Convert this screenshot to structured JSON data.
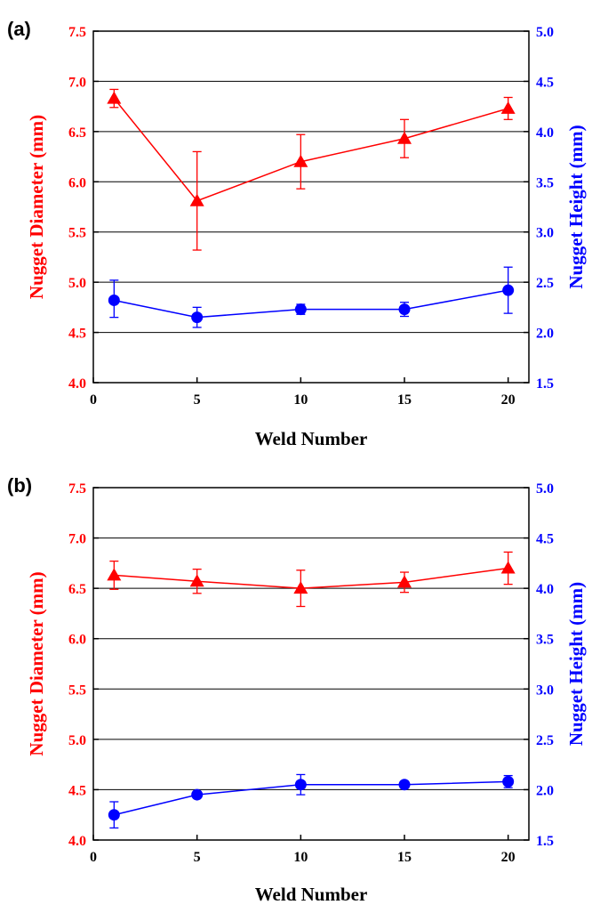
{
  "colors": {
    "left_axis": "#ff0000",
    "right_axis": "#0000ff",
    "frame": "#000000",
    "grid": "#000000"
  },
  "chart_data": [
    {
      "type": "line",
      "panel_label": "(a)",
      "xlabel": "Weld Number",
      "ylabel_left": "Nugget Diameter (mm)",
      "ylabel_right": "Nugget Height (mm)",
      "xlim": [
        0,
        21
      ],
      "ylim_left": [
        4.0,
        7.5
      ],
      "ylim_right": [
        1.5,
        5.0
      ],
      "x_ticks": [
        "0",
        "5",
        "10",
        "15",
        "20"
      ],
      "left_ticks": [
        "4.0",
        "4.5",
        "5.0",
        "5.5",
        "6.0",
        "6.5",
        "7.0",
        "7.5"
      ],
      "right_ticks": [
        "1.5",
        "2.0",
        "2.5",
        "3.0",
        "3.5",
        "4.0",
        "4.5",
        "5.0"
      ],
      "grid": "horizontal",
      "x": [
        1,
        5,
        10,
        15,
        20
      ],
      "series": [
        {
          "axis": "left",
          "marker": "triangle",
          "color": "#ff0000",
          "values": [
            6.83,
            5.81,
            6.2,
            6.43,
            6.73
          ],
          "err_low": [
            0.09,
            0.49,
            0.27,
            0.19,
            0.11
          ],
          "err_high": [
            0.09,
            0.49,
            0.27,
            0.19,
            0.11
          ]
        },
        {
          "axis": "right",
          "marker": "circle",
          "color": "#0000ff",
          "values": [
            2.32,
            2.15,
            2.23,
            2.23,
            2.42
          ],
          "err_low": [
            0.17,
            0.1,
            0.05,
            0.07,
            0.23
          ],
          "err_high": [
            0.2,
            0.1,
            0.05,
            0.07,
            0.23
          ]
        }
      ]
    },
    {
      "type": "line",
      "panel_label": "(b)",
      "xlabel": "Weld Number",
      "ylabel_left": "Nugget Diameter (mm)",
      "ylabel_right": "Nugget Height (mm)",
      "xlim": [
        0,
        21
      ],
      "ylim_left": [
        4.0,
        7.5
      ],
      "ylim_right": [
        1.5,
        5.0
      ],
      "x_ticks": [
        "0",
        "5",
        "10",
        "15",
        "20"
      ],
      "left_ticks": [
        "4.0",
        "4.5",
        "5.0",
        "5.5",
        "6.0",
        "6.5",
        "7.0",
        "7.5"
      ],
      "right_ticks": [
        "1.5",
        "2.0",
        "2.5",
        "3.0",
        "3.5",
        "4.0",
        "4.5",
        "5.0"
      ],
      "grid": "horizontal",
      "x": [
        1,
        5,
        10,
        15,
        20
      ],
      "series": [
        {
          "axis": "left",
          "marker": "triangle",
          "color": "#ff0000",
          "values": [
            6.63,
            6.57,
            6.5,
            6.56,
            6.7
          ],
          "err_low": [
            0.14,
            0.12,
            0.18,
            0.1,
            0.16
          ],
          "err_high": [
            0.14,
            0.12,
            0.18,
            0.1,
            0.16
          ]
        },
        {
          "axis": "right",
          "marker": "circle",
          "color": "#0000ff",
          "values": [
            1.75,
            1.95,
            2.05,
            2.05,
            2.08
          ],
          "err_low": [
            0.13,
            0.03,
            0.1,
            0.03,
            0.06
          ],
          "err_high": [
            0.13,
            0.03,
            0.1,
            0.03,
            0.06
          ]
        }
      ]
    }
  ]
}
